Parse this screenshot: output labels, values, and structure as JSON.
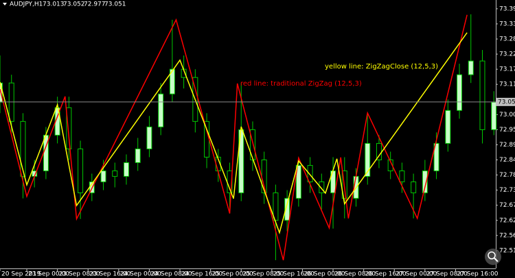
{
  "chart_data": {
    "type": "candlestick",
    "symbol": "AUDJPY,H1",
    "ohlc": [
      73.013,
      73.052,
      72.977,
      73.051
    ],
    "current_price": 73.051,
    "up_color": "#c8ffc8",
    "down_color": "#000000",
    "wick_color": "#00c800",
    "grid": false,
    "xlim": [
      -7,
      122.5
    ],
    "ylim": [
      72.445,
      73.422
    ],
    "xticks": [
      {
        "value": -7,
        "label": "20 Sep 2019"
      },
      {
        "value": 0,
        "label": "23 Sep 00:00"
      },
      {
        "value": 8,
        "label": "23 Sep 08:00"
      },
      {
        "value": 16,
        "label": "23 Sep 16:00"
      },
      {
        "value": 24,
        "label": "24 Sep 00:00"
      },
      {
        "value": 32,
        "label": "24 Sep 08:00"
      },
      {
        "value": 40,
        "label": "24 Sep 16:00"
      },
      {
        "value": 48,
        "label": "25 Sep 00:00"
      },
      {
        "value": 56,
        "label": "25 Sep 08:00"
      },
      {
        "value": 64,
        "label": "25 Sep 16:00"
      },
      {
        "value": 72,
        "label": "26 Sep 00:00"
      },
      {
        "value": 80,
        "label": "26 Sep 08:00"
      },
      {
        "value": 88,
        "label": "26 Sep 16:00"
      },
      {
        "value": 96,
        "label": "27 Sep 00:00"
      },
      {
        "value": 104,
        "label": "27 Sep 08:00"
      },
      {
        "value": 112,
        "label": "27 Sep 16:00"
      }
    ],
    "yticks": [
      {
        "value": 73.39,
        "label": "73.390"
      },
      73.335,
      {
        "value": 73.28,
        "label": "73.280"
      },
      73.225,
      {
        "value": 73.17,
        "label": "73.170"
      },
      73.115,
      73.005,
      {
        "value": 72.95,
        "label": "72.950"
      },
      72.895,
      {
        "value": 72.84,
        "label": "72.840"
      },
      72.785,
      {
        "value": 72.73,
        "label": "72.730"
      },
      72.675,
      {
        "value": 72.62,
        "label": "72.620"
      },
      72.565,
      {
        "value": 72.51,
        "label": "72.510"
      }
    ],
    "candles": {
      "x": [
        -7,
        -4,
        -1,
        2,
        5,
        8,
        11,
        14,
        17,
        20,
        23,
        26,
        29,
        32,
        35,
        38,
        41,
        44,
        47,
        50,
        53,
        56,
        59,
        62,
        65,
        68,
        71,
        74,
        77,
        80,
        83,
        86,
        89,
        92,
        95,
        98,
        101,
        104,
        107,
        110,
        113,
        116,
        119,
        122
      ],
      "open": [
        73.05,
        73.12,
        72.98,
        72.78,
        72.8,
        72.93,
        73.03,
        72.88,
        72.72,
        72.76,
        72.8,
        72.78,
        72.83,
        72.88,
        72.96,
        73.08,
        73.17,
        73.14,
        72.98,
        72.85,
        72.8,
        72.72,
        72.95,
        72.84,
        72.72,
        72.62,
        72.7,
        72.82,
        72.76,
        72.72,
        72.8,
        72.7,
        72.78,
        72.9,
        72.84,
        72.8,
        72.76,
        72.72,
        72.8,
        72.9,
        73.02,
        73.15,
        73.2,
        72.95
      ],
      "high": [
        73.22,
        73.15,
        73.01,
        72.84,
        72.96,
        73.07,
        73.07,
        72.91,
        72.79,
        72.84,
        72.83,
        72.86,
        72.92,
        73.0,
        73.12,
        73.35,
        73.22,
        73.17,
        73.01,
        72.88,
        72.83,
        73.12,
        72.98,
        72.87,
        72.75,
        72.73,
        72.85,
        72.85,
        72.79,
        72.85,
        72.85,
        72.81,
        73.01,
        72.93,
        72.87,
        72.83,
        72.79,
        72.84,
        72.94,
        73.06,
        73.19,
        73.37,
        73.24,
        73.09
      ],
      "low": [
        73.01,
        72.94,
        72.7,
        72.74,
        72.77,
        72.9,
        72.84,
        72.625,
        72.69,
        72.73,
        72.74,
        72.75,
        72.8,
        72.85,
        72.93,
        73.05,
        73.1,
        72.94,
        72.81,
        72.76,
        72.645,
        72.69,
        72.8,
        72.68,
        72.475,
        72.58,
        72.67,
        72.72,
        72.66,
        72.59,
        72.627,
        72.67,
        72.75,
        72.81,
        72.77,
        72.72,
        72.627,
        72.69,
        72.77,
        72.87,
        72.99,
        73.12,
        72.9,
        72.93
      ],
      "close": [
        73.12,
        72.98,
        72.78,
        72.8,
        72.93,
        73.03,
        72.88,
        72.72,
        72.76,
        72.8,
        72.78,
        72.83,
        72.88,
        72.96,
        73.08,
        73.17,
        73.14,
        72.98,
        72.85,
        72.8,
        72.72,
        72.95,
        72.84,
        72.72,
        72.62,
        72.7,
        72.82,
        72.76,
        72.72,
        72.8,
        72.7,
        72.78,
        72.9,
        72.84,
        72.8,
        72.76,
        72.72,
        72.8,
        72.9,
        73.02,
        73.15,
        73.2,
        72.95,
        73.05
      ]
    },
    "zigzags": [
      {
        "color": "#ff0000",
        "x": [
          -7,
          0,
          10,
          13,
          39,
          53,
          55,
          67,
          71,
          79,
          82,
          84,
          89,
          102,
          115
        ],
        "values": [
          73.098,
          72.707,
          73.071,
          72.625,
          73.35,
          72.645,
          73.118,
          72.475,
          72.847,
          72.592,
          72.849,
          72.627,
          73.011,
          72.627,
          73.368
        ]
      },
      {
        "color": "#ffff00",
        "x": [
          -7,
          0,
          8,
          13,
          40,
          54,
          56,
          66,
          71,
          78,
          81,
          83,
          115
        ],
        "values": [
          73.123,
          72.749,
          73.041,
          72.674,
          73.203,
          72.699,
          72.961,
          72.575,
          72.836,
          72.719,
          72.844,
          72.68,
          73.303
        ]
      }
    ],
    "annotations": [
      {
        "text": "yellow line: ZigZagClose (12,5,3)",
        "color": "#ffff00"
      },
      {
        "text": "red line: traditional ZigZag (12,5,3)",
        "color": "#ff0000"
      }
    ]
  }
}
